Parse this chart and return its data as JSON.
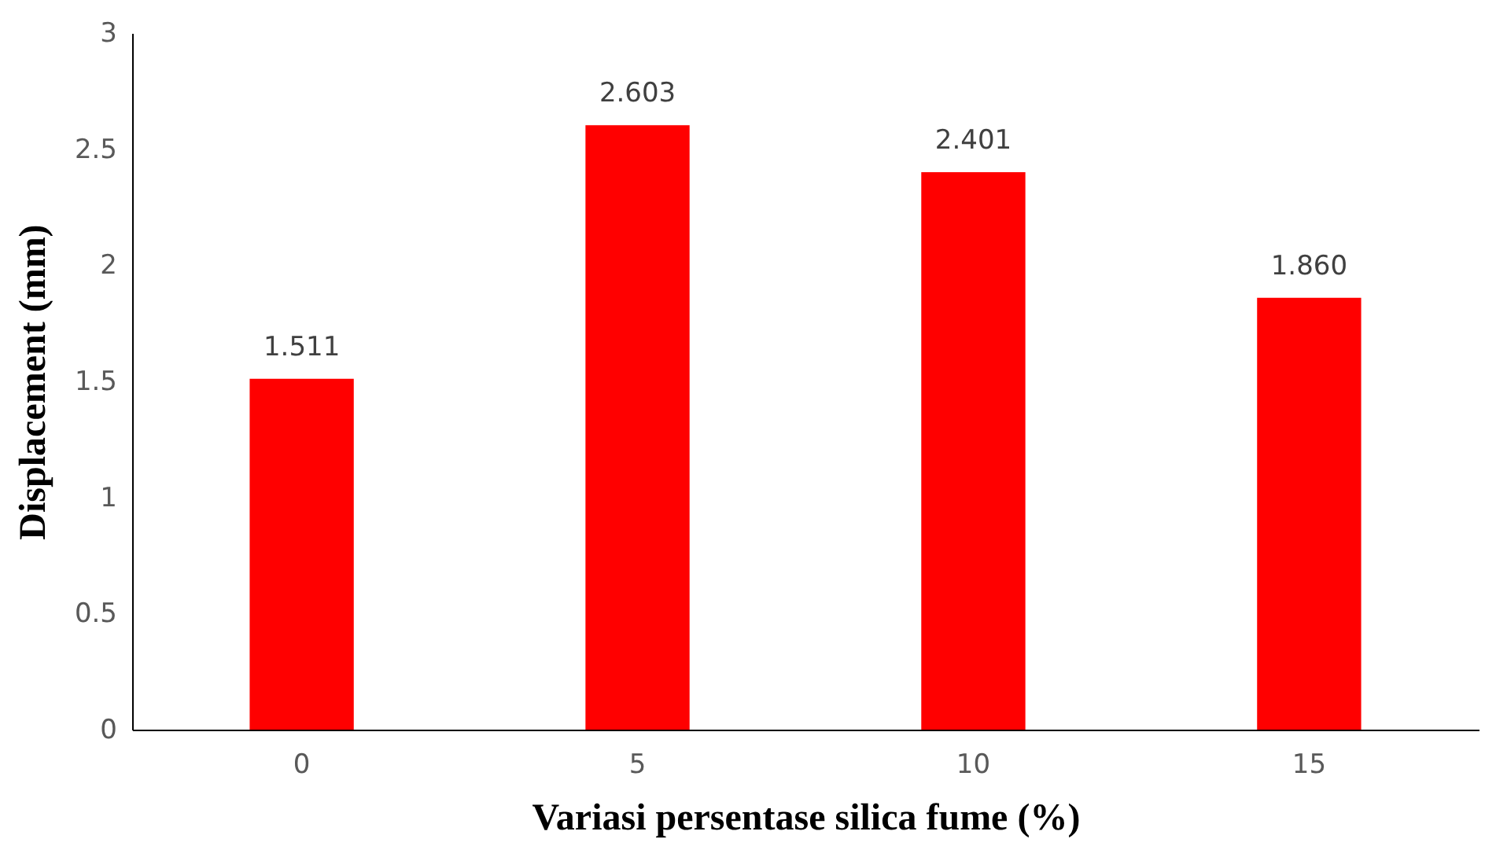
{
  "chart_data": {
    "type": "bar",
    "xlabel": "Variasi persentase silica fume (%)",
    "ylabel": "Displacement (mm)",
    "categories": [
      "0",
      "5",
      "10",
      "15"
    ],
    "series": [
      {
        "color": "#ff0000",
        "values": [
          1.511,
          2.603,
          2.401,
          1.86
        ],
        "value_labels": [
          "1.511",
          "2.603",
          "2.401",
          "1.860"
        ]
      }
    ],
    "ylim": [
      0,
      3
    ],
    "yticks": [
      0,
      0.5,
      1,
      1.5,
      2,
      2.5,
      3
    ],
    "grid": false
  }
}
